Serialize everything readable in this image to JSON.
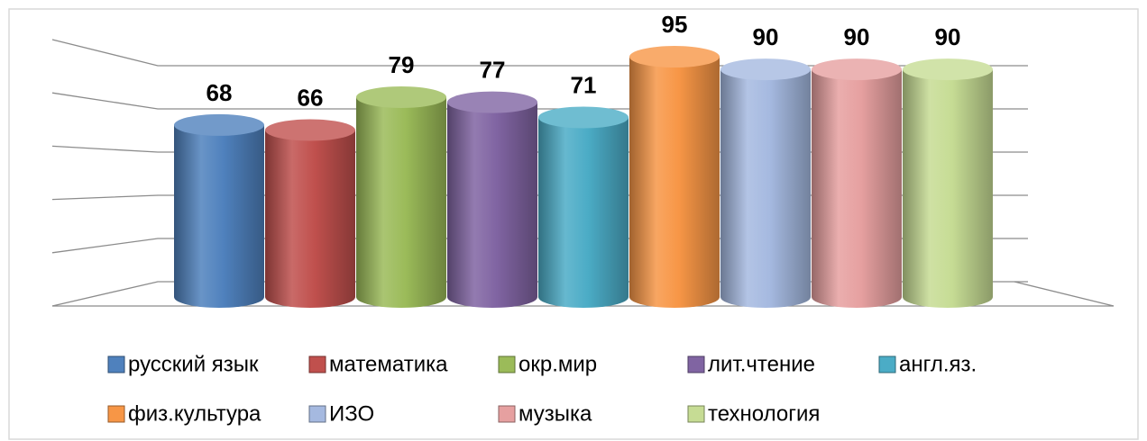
{
  "chart_data": {
    "type": "bar",
    "series": [
      {
        "name": "русский язык",
        "color": "#4f81bd",
        "values": [
          68
        ]
      },
      {
        "name": "математика",
        "color": "#c0504d",
        "values": [
          66
        ]
      },
      {
        "name": "окр.мир",
        "color": "#9bbb59",
        "values": [
          79
        ]
      },
      {
        "name": "лит.чтение",
        "color": "#8064a2",
        "values": [
          77
        ]
      },
      {
        "name": "англ.яз.",
        "color": "#4bacc6",
        "values": [
          71
        ]
      },
      {
        "name": "физ.культура",
        "color": "#f79646",
        "values": [
          95
        ]
      },
      {
        "name": "ИЗО",
        "color": "#a5b9e0",
        "values": [
          90
        ]
      },
      {
        "name": "музыка",
        "color": "#e6a0a0",
        "values": [
          90
        ]
      },
      {
        "name": "технология",
        "color": "#c6dc94",
        "values": [
          90
        ]
      }
    ],
    "ylim": [
      0,
      100
    ],
    "yticks": [
      0,
      20,
      40,
      60,
      80,
      100
    ],
    "grid": true,
    "legend": "bottom"
  }
}
